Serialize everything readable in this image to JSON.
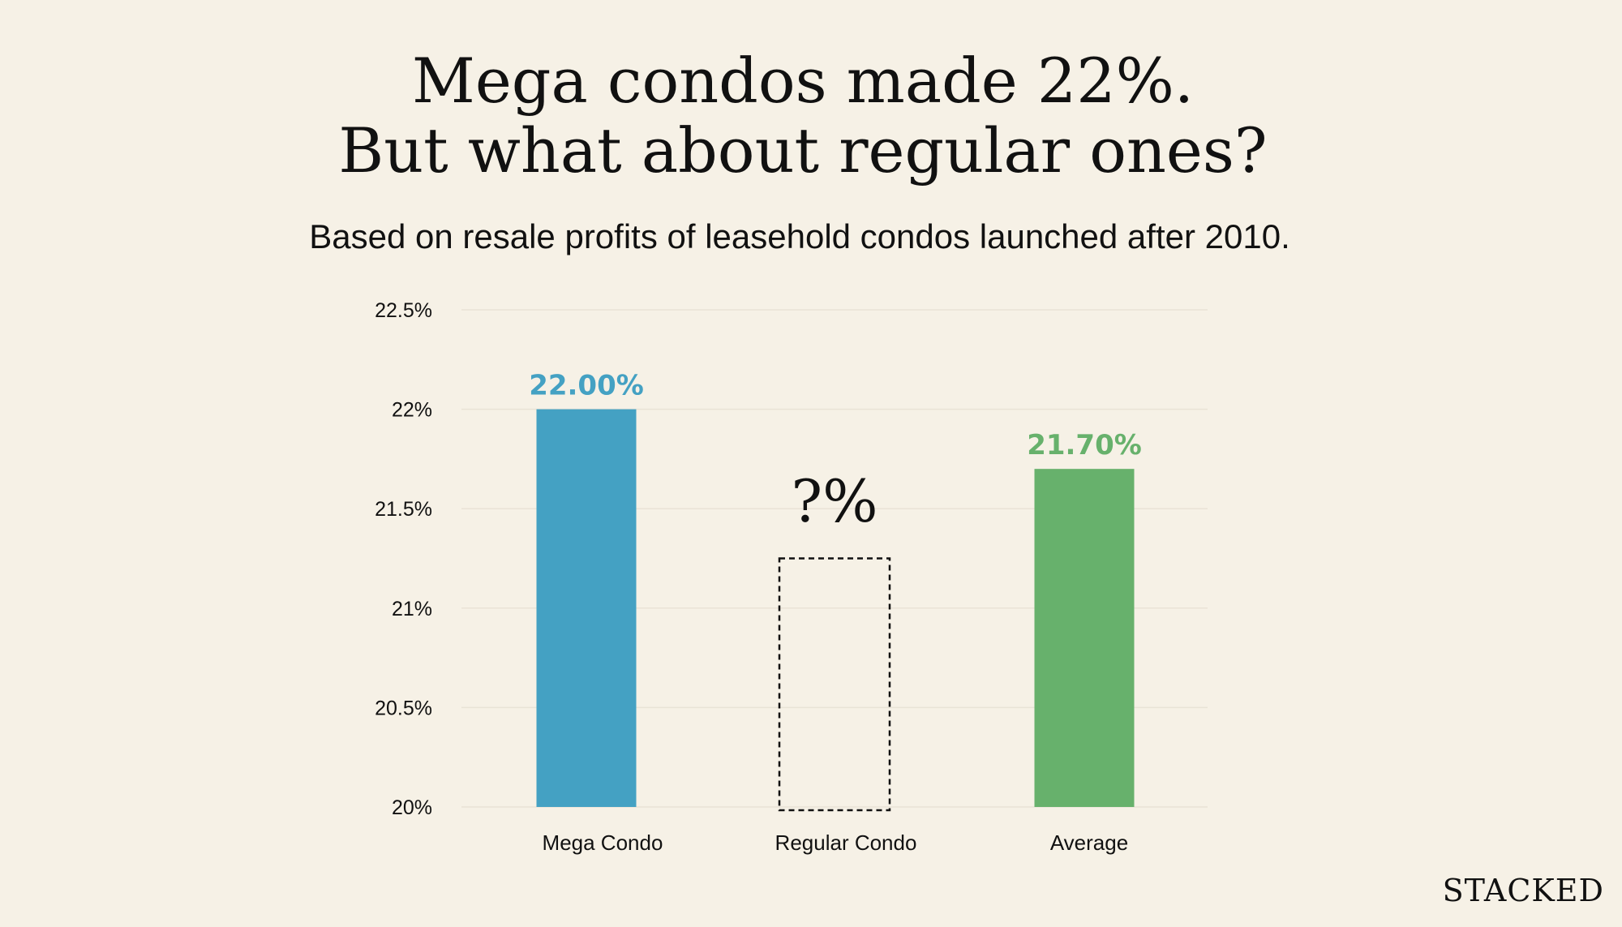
{
  "title_line1": "Mega condos made 22%.",
  "title_line2": "But what about regular ones?",
  "subtitle": "Based on resale profits of leasehold condos launched after 2010.",
  "brand": "STACKED",
  "chart_data": {
    "type": "bar",
    "title": "Mega condos made 22%. But what about regular ones?",
    "subtitle": "Based on resale profits of leasehold condos launched after 2010.",
    "xlabel": "",
    "ylabel": "",
    "ylim": [
      20,
      22.5
    ],
    "grid": true,
    "yticks": [
      {
        "value": 20,
        "label": "20%"
      },
      {
        "value": 20.5,
        "label": "20.5%"
      },
      {
        "value": 21,
        "label": "21%"
      },
      {
        "value": 21.5,
        "label": "21.5%"
      },
      {
        "value": 22,
        "label": "22%"
      },
      {
        "value": 22.5,
        "label": "22.5%"
      }
    ],
    "categories": [
      "Mega Condo",
      "Regular Condo",
      "Average"
    ],
    "values": [
      22.0,
      null,
      21.7
    ],
    "placeholder_outline_top": 21.25,
    "data_labels": [
      "22.00%",
      "?%",
      "21.70%"
    ],
    "colors": [
      "#44a1c3",
      null,
      "#67b16c"
    ]
  }
}
